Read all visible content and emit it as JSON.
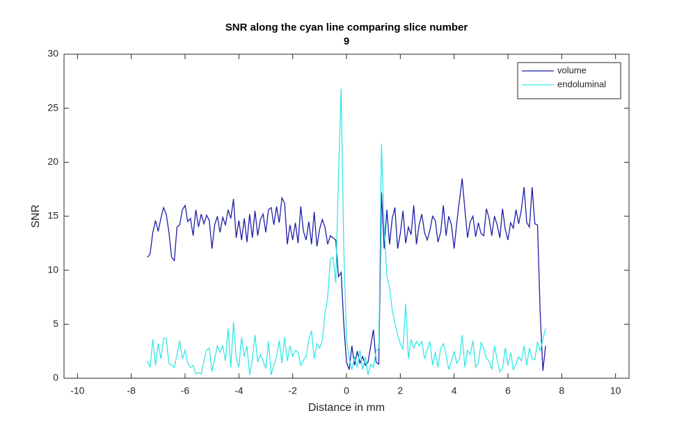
{
  "chart_data": {
    "type": "line",
    "title": [
      "SNR along the cyan line comparing slice number",
      "9"
    ],
    "xlabel": "Distance in mm",
    "ylabel": "SNR",
    "xlim": [
      -10.5,
      10.5
    ],
    "xticks": [
      -10,
      -8,
      -6,
      -4,
      -2,
      0,
      2,
      4,
      6,
      8,
      10
    ],
    "ylim": [
      0,
      30
    ],
    "yticks": [
      0,
      5,
      10,
      15,
      20,
      25,
      30
    ],
    "legend": "upper right",
    "grid": false,
    "x": [
      -7.4,
      -7.3,
      -7.2,
      -7.1,
      -7.0,
      -6.9,
      -6.8,
      -6.7,
      -6.6,
      -6.5,
      -6.4,
      -6.3,
      -6.2,
      -6.1,
      -6.0,
      -5.9,
      -5.8,
      -5.7,
      -5.6,
      -5.5,
      -5.4,
      -5.3,
      -5.2,
      -5.1,
      -5.0,
      -4.9,
      -4.8,
      -4.7,
      -4.6,
      -4.5,
      -4.4,
      -4.3,
      -4.2,
      -4.1,
      -4.0,
      -3.9,
      -3.8,
      -3.7,
      -3.6,
      -3.5,
      -3.4,
      -3.3,
      -3.2,
      -3.1,
      -3.0,
      -2.9,
      -2.8,
      -2.7,
      -2.6,
      -2.5,
      -2.4,
      -2.3,
      -2.2,
      -2.1,
      -2.0,
      -1.9,
      -1.8,
      -1.7,
      -1.6,
      -1.5,
      -1.4,
      -1.3,
      -1.2,
      -1.1,
      -1.0,
      -0.9,
      -0.8,
      -0.7,
      -0.6,
      -0.5,
      -0.4,
      -0.3,
      -0.2,
      -0.1,
      0.0,
      0.1,
      0.2,
      0.3,
      0.4,
      0.5,
      0.6,
      0.7,
      0.8,
      0.9,
      1.0,
      1.1,
      1.2,
      1.3,
      1.4,
      1.5,
      1.6,
      1.7,
      1.8,
      1.9,
      2.0,
      2.1,
      2.2,
      2.3,
      2.4,
      2.5,
      2.6,
      2.7,
      2.8,
      2.9,
      3.0,
      3.1,
      3.2,
      3.3,
      3.4,
      3.5,
      3.6,
      3.7,
      3.8,
      3.9,
      4.0,
      4.1,
      4.2,
      4.3,
      4.4,
      4.5,
      4.6,
      4.7,
      4.8,
      4.9,
      5.0,
      5.1,
      5.2,
      5.3,
      5.4,
      5.5,
      5.6,
      5.7,
      5.8,
      5.9,
      6.0,
      6.1,
      6.2,
      6.3,
      6.4,
      6.5,
      6.6,
      6.7,
      6.8,
      6.9,
      7.0,
      7.1,
      7.2,
      7.3,
      7.4
    ],
    "series": [
      {
        "name": "volume",
        "color": "#1c1ca8",
        "values": [
          11.2,
          11.5,
          13.5,
          14.6,
          13.6,
          14.8,
          15.8,
          15.2,
          13.5,
          11.2,
          10.9,
          14.0,
          14.2,
          15.6,
          16.0,
          14.5,
          14.8,
          13.2,
          15.6,
          14.0,
          15.2,
          14.3,
          15.1,
          14.6,
          12.0,
          14.2,
          15.0,
          13.5,
          14.9,
          14.2,
          15.6,
          14.8,
          16.6,
          13.0,
          14.6,
          12.8,
          14.8,
          12.6,
          15.2,
          13.0,
          15.5,
          13.2,
          14.7,
          15.2,
          13.5,
          15.6,
          15.8,
          14.2,
          15.9,
          14.4,
          16.7,
          16.2,
          12.4,
          14.2,
          12.8,
          14.4,
          12.5,
          15.9,
          13.6,
          12.8,
          14.5,
          12.4,
          15.4,
          12.2,
          13.8,
          14.7,
          14.0,
          12.4,
          13.2,
          13.0,
          12.8,
          9.4,
          9.8,
          5.0,
          1.5,
          0.8,
          3.0,
          1.2,
          2.5,
          1.4,
          2.0,
          1.2,
          1.5,
          3.0,
          4.5,
          1.5,
          1.3,
          17.2,
          12.0,
          15.6,
          12.4,
          14.8,
          15.8,
          12.0,
          13.4,
          15.5,
          12.5,
          14.0,
          13.3,
          16.0,
          12.4,
          14.2,
          15.2,
          13.5,
          12.8,
          13.7,
          15.0,
          14.6,
          12.6,
          13.5,
          16.0,
          13.2,
          15.0,
          14.2,
          12.0,
          14.4,
          16.5,
          18.5,
          15.6,
          13.0,
          14.5,
          15.0,
          13.1,
          14.4,
          13.4,
          13.2,
          15.7,
          14.8,
          13.2,
          15.0,
          14.2,
          13.0,
          15.7,
          13.8,
          12.8,
          14.4,
          13.9,
          15.6,
          14.3,
          15.6,
          17.7,
          14.4,
          14.0,
          17.7,
          14.3,
          14.2,
          6.0,
          0.7,
          3.0
        ]
      },
      {
        "name": "endoluminal",
        "color": "#33e6e6",
        "values": [
          1.6,
          1.0,
          3.6,
          1.2,
          3.2,
          1.8,
          3.7,
          3.7,
          1.4,
          1.2,
          1.0,
          2.2,
          3.5,
          1.8,
          2.6,
          1.4,
          1.0,
          1.2,
          0.4,
          0.5,
          0.4,
          1.6,
          2.6,
          2.8,
          0.6,
          1.8,
          3.0,
          2.4,
          3.0,
          1.6,
          4.6,
          1.0,
          5.2,
          1.8,
          1.0,
          3.8,
          2.0,
          3.0,
          0.3,
          1.8,
          4.0,
          1.5,
          2.2,
          1.6,
          0.9,
          3.4,
          0.3,
          1.2,
          2.0,
          3.5,
          1.4,
          3.8,
          1.6,
          3.0,
          2.0,
          2.6,
          2.4,
          1.2,
          1.7,
          2.0,
          3.6,
          4.4,
          1.8,
          3.2,
          2.8,
          3.5,
          6.0,
          7.5,
          11.0,
          11.2,
          8.8,
          18.5,
          26.8,
          12.0,
          3.6,
          1.8,
          0.8,
          2.0,
          1.0,
          2.6,
          0.8,
          2.0,
          0.3,
          1.3,
          1.0,
          2.5,
          2.8,
          21.7,
          14.0,
          9.5,
          8.4,
          6.3,
          5.1,
          4.0,
          3.2,
          2.7,
          6.9,
          1.8,
          3.6,
          2.8,
          3.4,
          3.0,
          3.4,
          1.8,
          2.6,
          3.4,
          1.2,
          2.4,
          1.0,
          2.8,
          3.2,
          2.2,
          0.8,
          1.6,
          2.5,
          1.4,
          1.8,
          4.0,
          1.0,
          2.6,
          2.2,
          3.5,
          1.0,
          1.4,
          3.3,
          2.8,
          1.8,
          1.6,
          0.8,
          3.0,
          1.7,
          0.6,
          0.9,
          2.8,
          1.2,
          2.4,
          0.8,
          1.3,
          2.0,
          1.6,
          3.0,
          1.2,
          2.8,
          1.8,
          1.7,
          3.4,
          2.5,
          3.6,
          4.6
        ]
      }
    ]
  }
}
